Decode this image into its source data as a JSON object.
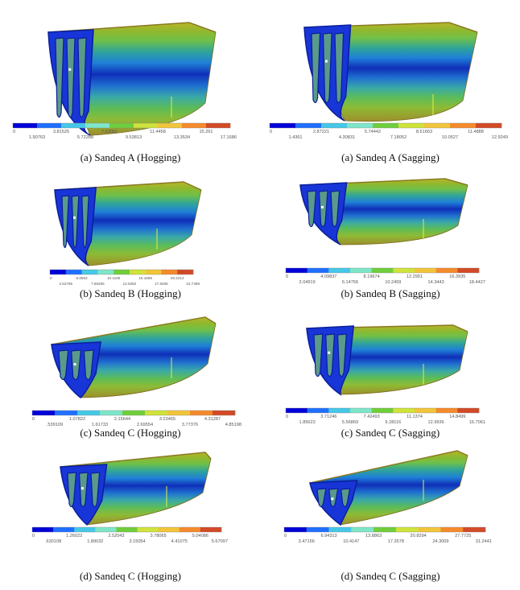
{
  "colormap": [
    "#0000d8",
    "#1f6fff",
    "#45c8e8",
    "#7ee6c8",
    "#6fce3c",
    "#cfe33a",
    "#f2c53a",
    "#f58a2c",
    "#d24a26"
  ],
  "panels": [
    {
      "caption": "(a)  Sandeq A (Hogging)",
      "ticks_top": [
        "0",
        "3.81525",
        "7.63051",
        "11.4458",
        "15.261"
      ],
      "ticks_bottom": [
        "1.90763",
        "5.72288",
        "9.53813",
        "13.3534",
        "17.1686"
      ]
    },
    {
      "caption": "(a)  Sandeq A (Sagging)",
      "ticks_top": [
        "0",
        "2.87221",
        "5.74442",
        "8.61663",
        "11.4888"
      ],
      "ticks_bottom": [
        "1.4361",
        "4.30831",
        "7.18052",
        "10.0527",
        "12.9249"
      ]
    },
    {
      "caption": "(b)  Sandeq B (Hogging)",
      "ticks_top": [
        "0",
        "5.0553",
        "10.1106",
        "15.1659",
        "20.2212"
      ],
      "ticks_bottom": [
        "2.52765",
        "7.58295",
        "12.6382",
        "17.6935",
        "22.7488"
      ]
    },
    {
      "caption": "(b)  Sandeq B (Sagging)",
      "ticks_top": [
        "0",
        "4.09837",
        "8.19674",
        "12.2951",
        "16.3935"
      ],
      "ticks_bottom": [
        "2.04919",
        "6.14756",
        "10.2459",
        "14.3443",
        "18.4427"
      ]
    },
    {
      "caption": "(c)  Sandeq C (Hogging)",
      "ticks_top": [
        "0",
        "1.07822",
        "2.15644",
        "3.23465",
        "4.31287"
      ],
      "ticks_bottom": [
        ".539109",
        "1.61733",
        "2.69554",
        "3.77376",
        "4.85198"
      ]
    },
    {
      "caption": "(c)  Sandeq C (Sagging)",
      "ticks_top": [
        "0",
        "3.71246",
        "7.42493",
        "11.1374",
        "14.8499"
      ],
      "ticks_bottom": [
        "1.85623",
        "5.56869",
        "9.28116",
        "12.9936",
        "16.7061"
      ]
    },
    {
      "caption": "(d)  Sandeq C (Hogging)",
      "ticks_top": [
        "0",
        "1.26022",
        "2.52043",
        "3.78065",
        "5.04086"
      ],
      "ticks_bottom": [
        ".630108",
        "1.89032",
        "3.15054",
        "4.41075",
        "5.67097"
      ]
    },
    {
      "caption": "(d)  Sandeq C (Sagging)",
      "ticks_top": [
        "0",
        "6.94313",
        "13.8863",
        "20.8294",
        "27.7725"
      ],
      "ticks_bottom": [
        "3.47156",
        "10.4147",
        "17.3578",
        "24.3009",
        "31.2441"
      ]
    }
  ]
}
